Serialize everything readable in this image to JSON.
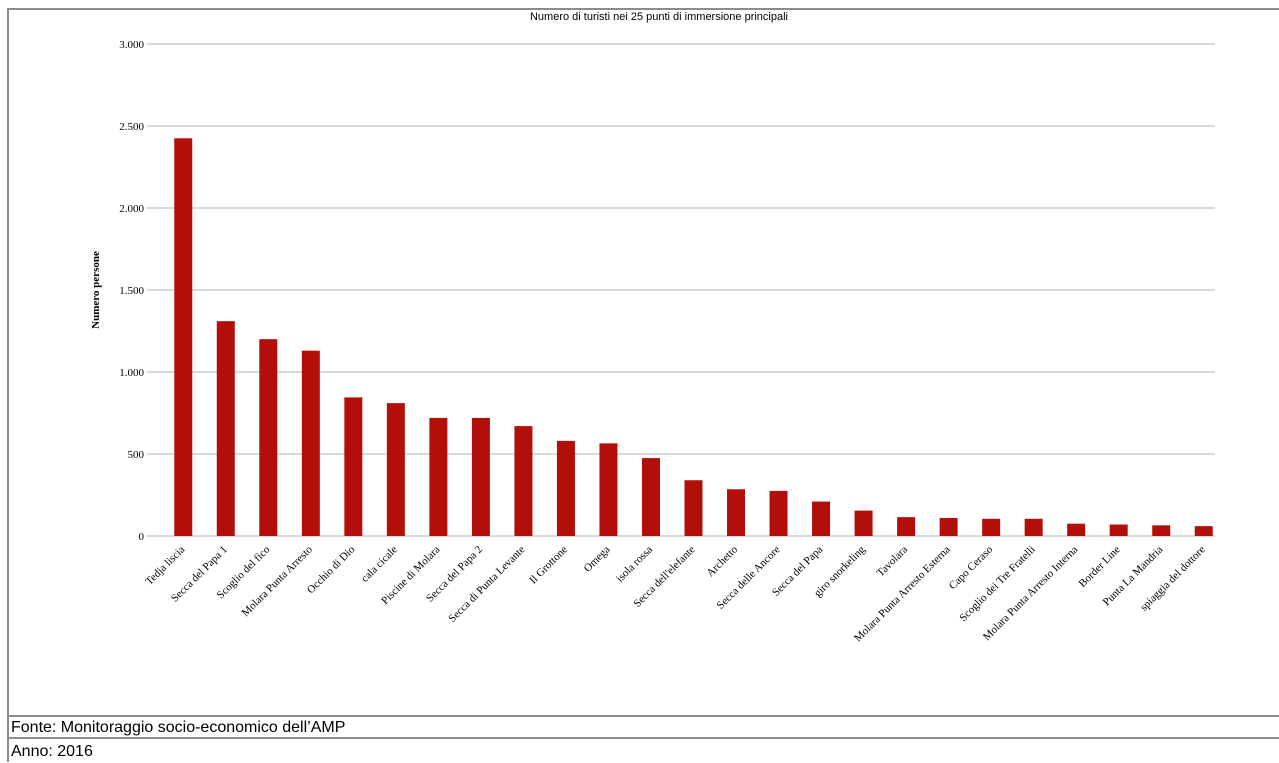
{
  "chart_data": {
    "type": "bar",
    "title": "Numero di turisti nei 25 punti di immersione principali",
    "xlabel": "",
    "ylabel": "Numero persone",
    "ylim": [
      0,
      3000
    ],
    "yticks": [
      0,
      500,
      1000,
      1500,
      2000,
      2500,
      3000
    ],
    "ytick_labels": [
      "0",
      "500",
      "1.000",
      "1.500",
      "2.000",
      "2.500",
      "3.000"
    ],
    "grid": true,
    "bar_color": "#b30f0a",
    "categories": [
      "Tedja liscia",
      "Secca del Papa 1",
      "Scoglio del fico",
      "Molara Punta Arresto",
      "Occhio di Dio",
      "cala cicale",
      "Piscine di Molara",
      "Secca del Papa 2",
      "Secca di Punta Levante",
      "Il Grottone",
      "Omega",
      "isola rossa",
      "Secca dell'elefante",
      "Archetto",
      "Secca delle Ancore",
      "Secca del Papa",
      "giro snorkeling",
      "Tavolara",
      "Molara Punta Arresto Esterna",
      "Capo Ceraso",
      "Scoglio dei Tre Fratelli",
      "Molara Punta Arresto Interna",
      "Border Line",
      "Punta La Mandria",
      "spiaggia del dottore"
    ],
    "values": [
      2425,
      1310,
      1200,
      1130,
      845,
      810,
      720,
      720,
      670,
      580,
      565,
      475,
      340,
      285,
      275,
      210,
      155,
      115,
      110,
      105,
      105,
      75,
      70,
      65,
      60
    ]
  },
  "footer": {
    "source": "Fonte: Monitoraggio socio-economico dell’AMP",
    "year": "Anno: 2016"
  }
}
